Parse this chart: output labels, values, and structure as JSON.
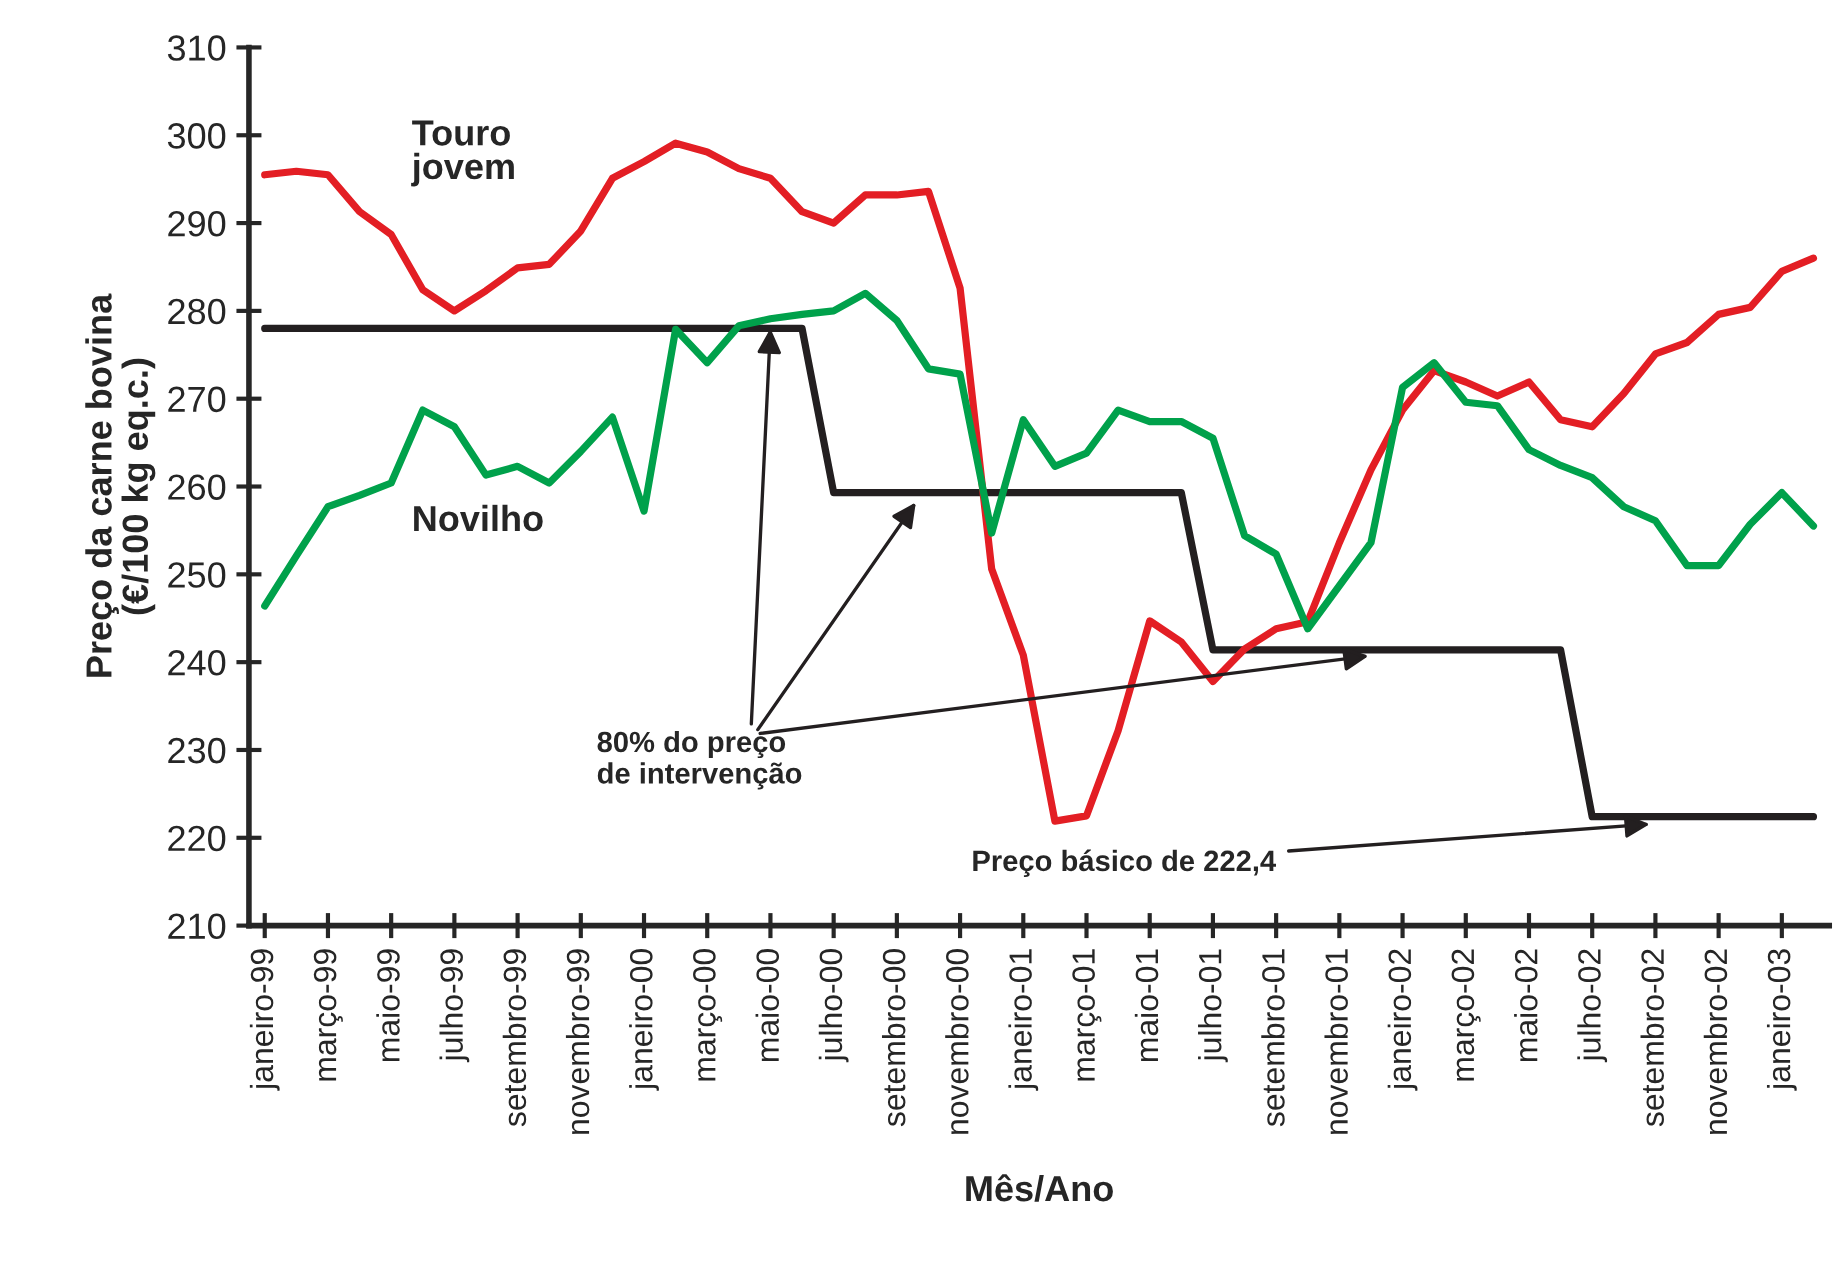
{
  "chart_data": {
    "type": "line",
    "xlabel": "Mês/Ano",
    "ylabel": "Preço da carne bovina\n(€/100 kg eq.c.)",
    "categories": [
      "janeiro-99",
      null,
      "março-99",
      null,
      "maio-99",
      null,
      "julho-99",
      null,
      "setembro-99",
      null,
      "novembro-99",
      null,
      "janeiro-00",
      null,
      "março-00",
      null,
      "maio-00",
      null,
      "julho-00",
      null,
      "setembro-00",
      null,
      "novembro-00",
      null,
      "janeiro-01",
      null,
      "março-01",
      null,
      "maio-01",
      null,
      "julho-01",
      null,
      "setembro-01",
      null,
      "novembro-01",
      null,
      "janeiro-02",
      null,
      "março-02",
      null,
      "maio-02",
      null,
      "julho-02",
      null,
      "setembro-02",
      null,
      "novembro-02",
      null,
      "janeiro-03",
      null
    ],
    "series": [
      {
        "name": "Touro jovem",
        "color": "#e31e24",
        "values": [
          295.5,
          295.9,
          295.5,
          291.3,
          288.7,
          282.4,
          280.0,
          282.3,
          284.9,
          285.3,
          289.1,
          295.1,
          297.0,
          299.1,
          298.1,
          296.2,
          295.1,
          291.3,
          290.0,
          293.2,
          293.2,
          293.6,
          282.6,
          250.6,
          240.8,
          221.9,
          222.5,
          232.2,
          244.7,
          242.3,
          237.8,
          241.5,
          243.8,
          244.6,
          253.6,
          261.9,
          268.7,
          273.2,
          271.9,
          270.3,
          271.9,
          267.6,
          266.8,
          270.6,
          275.1,
          276.4,
          279.6,
          280.4,
          284.5,
          286.0
        ]
      },
      {
        "name": "Novilho",
        "color": "#00a14b",
        "values": [
          246.4,
          252.1,
          257.7,
          259.0,
          260.4,
          268.7,
          266.8,
          261.3,
          262.3,
          260.4,
          264.0,
          267.9,
          257.2,
          277.9,
          274.1,
          278.3,
          279.1,
          279.6,
          280.0,
          282.0,
          278.9,
          273.4,
          272.8,
          254.7,
          267.6,
          262.3,
          263.8,
          268.7,
          267.4,
          267.4,
          265.5,
          254.4,
          252.3,
          243.8,
          248.7,
          253.6,
          271.3,
          274.1,
          269.6,
          269.2,
          264.2,
          262.4,
          261.0,
          257.7,
          256.1,
          251.0,
          251.0,
          255.7,
          259.3,
          255.5
        ]
      },
      {
        "color": "#231f20",
        "values": [
          278.0,
          278.0,
          278.0,
          278.0,
          278.0,
          278.0,
          278.0,
          278.0,
          278.0,
          278.0,
          278.0,
          278.0,
          278.0,
          278.0,
          278.0,
          278.0,
          278.0,
          278.0,
          259.3,
          259.3,
          259.3,
          259.3,
          259.3,
          259.3,
          259.3,
          259.3,
          259.3,
          259.3,
          259.3,
          259.3,
          241.4,
          241.4,
          241.4,
          241.4,
          241.4,
          241.4,
          241.4,
          241.4,
          241.4,
          241.4,
          241.4,
          241.4,
          222.4,
          222.4,
          222.4,
          222.4,
          222.4,
          222.4,
          222.4,
          222.4
        ]
      }
    ],
    "ylim": [
      210,
      310
    ],
    "yticks": [
      210,
      220,
      230,
      240,
      250,
      260,
      270,
      280,
      290,
      300,
      310
    ],
    "grid": false,
    "legend": false,
    "marker": "none",
    "line_style": "solid",
    "annotations": [
      {
        "text": "80% do preço\nde intervenção",
        "x": "maio-00",
        "y": 278.0
      },
      {
        "text": "Preço básico de 222,4",
        "x": "setembro-02",
        "y": 222.4
      }
    ]
  }
}
